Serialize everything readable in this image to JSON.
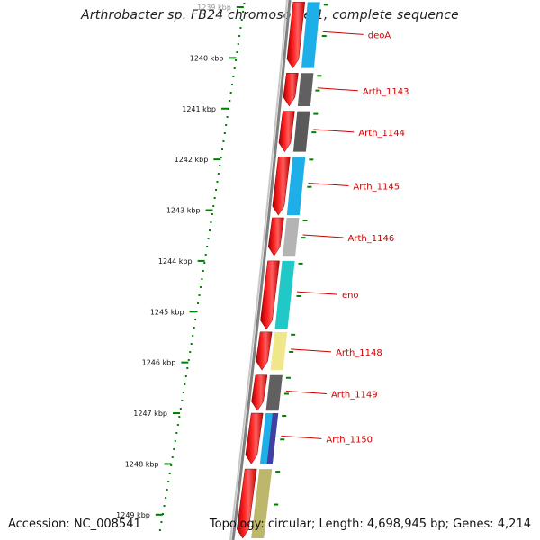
{
  "title": "Arthrobacter sp. FB24 chromosome 1, complete sequence",
  "accession_text": "Accession: NC_008541",
  "summary_text": "Topology: circular; Length: 4,698,945 bp; Genes: 4,214",
  "scale_ticks": [
    {
      "kbp": 1239,
      "label": "1239 kbp",
      "faded": true
    },
    {
      "kbp": 1240,
      "label": "1240 kbp"
    },
    {
      "kbp": 1241,
      "label": "1241 kbp"
    },
    {
      "kbp": 1242,
      "label": "1242 kbp"
    },
    {
      "kbp": 1243,
      "label": "1243 kbp"
    },
    {
      "kbp": 1244,
      "label": "1244 kbp"
    },
    {
      "kbp": 1245,
      "label": "1245 kbp"
    },
    {
      "kbp": 1246,
      "label": "1246 kbp"
    },
    {
      "kbp": 1247,
      "label": "1247 kbp"
    },
    {
      "kbp": 1248,
      "label": "1248 kbp"
    },
    {
      "kbp": 1249,
      "label": "1249 kbp"
    }
  ],
  "genes": [
    {
      "name": "deoA",
      "start_kbp": 1238.9,
      "end_kbp": 1240.2,
      "color": "#1eaee8"
    },
    {
      "name": "Arth_1143",
      "start_kbp": 1240.3,
      "end_kbp": 1240.95,
      "color": "#606060"
    },
    {
      "name": "Arth_1144",
      "start_kbp": 1241.05,
      "end_kbp": 1241.85,
      "color": "#5a5a5a"
    },
    {
      "name": "Arth_1145",
      "start_kbp": 1241.95,
      "end_kbp": 1243.1,
      "color": "#1eaee8"
    },
    {
      "name": "Arth_1146",
      "start_kbp": 1243.15,
      "end_kbp": 1243.9,
      "color": "#b4b4b4"
    },
    {
      "name": "eno",
      "start_kbp": 1244.0,
      "end_kbp": 1245.35,
      "color": "#20c8c8"
    },
    {
      "name": "Arth_1148",
      "start_kbp": 1245.4,
      "end_kbp": 1246.15,
      "color": "#f0e68c"
    },
    {
      "name": "Arth_1149",
      "start_kbp": 1246.25,
      "end_kbp": 1246.95,
      "color": "#606060"
    },
    {
      "name": "Arth_1150",
      "start_kbp": 1247.0,
      "end_kbp": 1248.0,
      "color": "#1eaee8",
      "accent_color": "#4040a0"
    },
    {
      "name": "",
      "start_kbp": 1248.1,
      "end_kbp": 1249.5,
      "color": "#bdb76b"
    }
  ],
  "colors": {
    "forward_strand": "#ff0000",
    "backbone": "#808080",
    "scale_dots": "#008000",
    "gene_label": "#cc0000",
    "connector": "#cc0000"
  }
}
